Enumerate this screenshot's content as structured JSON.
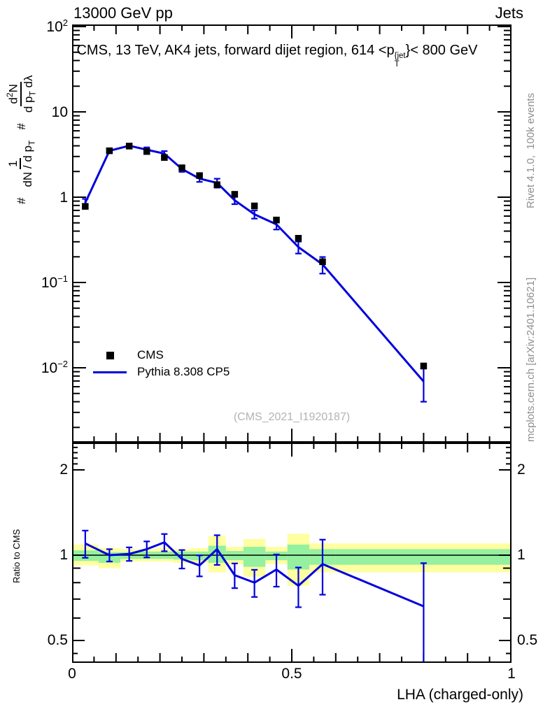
{
  "header": {
    "left": "13000 GeV pp",
    "right": "Jets"
  },
  "title": {
    "prefix": "CMS, 13 TeV, AK4 jets, forward dijet region, 614 <p",
    "sup": "{jet",
    "sub": "T",
    "suffix": "}< 800 GeV"
  },
  "ylabel": {
    "hash1": "#",
    "frac1": {
      "num": "1",
      "den_a": "dN / d p",
      "den_sub": "T"
    },
    "hash2": "#",
    "frac2": {
      "num_a": "d",
      "num_sup": "2",
      "num_b": "N",
      "den_a": "d p",
      "den_sub": "T",
      "den_b": " dλ"
    }
  },
  "right_labels": {
    "top": "Rivet 4.1.0,  100k events",
    "bottom": "mcplots.cern.ch [arXiv:2401.10621]"
  },
  "legend": {
    "items": [
      {
        "label": "CMS",
        "marker": "square"
      },
      {
        "label": "Pythia 8.308 CP5",
        "marker": "line"
      }
    ]
  },
  "watermark": "(CMS_2021_I1920187)",
  "ratio_ylabel": "Ratio to CMS",
  "xlabel": "LHA (charged-only)",
  "colors": {
    "mc_line": "#0000dd",
    "data_marker": "#000000",
    "band_yellow": "#feffa0",
    "band_green": "#95f0a0",
    "axis": "#000000",
    "gray_text": "#8f8f8f",
    "watermark": "#b3b3b3"
  },
  "axes": {
    "x_ticks": [
      {
        "label": "0",
        "value": 0
      },
      {
        "label": "0.5",
        "value": 0.5
      },
      {
        "label": "1",
        "value": 1
      }
    ],
    "main_y_ticks": [
      {
        "base": "10",
        "exp": "2",
        "value": 100
      },
      {
        "base": "10",
        "exp": "",
        "value": 10
      },
      {
        "base": "1",
        "exp": "",
        "value": 1
      },
      {
        "base": "10",
        "exp": "−1",
        "value": 0.1
      },
      {
        "base": "10",
        "exp": "−2",
        "value": 0.01
      }
    ],
    "ratio_y_ticks": [
      {
        "label": "2",
        "value": 2
      },
      {
        "label": "1",
        "value": 1
      },
      {
        "label": "0.5",
        "value": 0.5
      }
    ]
  },
  "chart_data": {
    "type": "line",
    "title": "CMS, 13 TeV, AK4 jets, forward dijet region, 614 < pT_jet < 800 GeV",
    "xlabel": "LHA (charged-only)",
    "ylabel": "# 1/(dN/dpT) # d2N/(dpT dlambda)",
    "xlim": [
      0,
      1
    ],
    "main_ylim": [
      0.00133,
      105
    ],
    "main_yscale": "log",
    "ratio_ylim": [
      0.417,
      2.49
    ],
    "ratio_yscale": "log",
    "x": [
      0.03,
      0.085,
      0.13,
      0.17,
      0.21,
      0.25,
      0.29,
      0.33,
      0.37,
      0.415,
      0.465,
      0.515,
      0.57,
      0.8
    ],
    "bin_edges": [
      0,
      0.06,
      0.11,
      0.15,
      0.19,
      0.23,
      0.27,
      0.31,
      0.35,
      0.39,
      0.44,
      0.49,
      0.54,
      0.6,
      1.0
    ],
    "series": [
      {
        "name": "CMS",
        "style": "black-squares",
        "values": [
          0.78,
          3.5,
          3.97,
          3.43,
          2.92,
          2.21,
          1.79,
          1.4,
          1.08,
          0.79,
          0.54,
          0.33,
          0.175,
          0.0105
        ]
      },
      {
        "name": "Pythia 8.308 CP5",
        "style": "blue-line",
        "values": [
          0.86,
          3.5,
          4.01,
          3.6,
          3.24,
          2.14,
          1.65,
          1.47,
          0.92,
          0.63,
          0.48,
          0.26,
          0.163,
          0.0069
        ],
        "rel_err": [
          0.11,
          0.05,
          0.055,
          0.065,
          0.07,
          0.075,
          0.085,
          0.12,
          0.1,
          0.11,
          0.13,
          0.16,
          0.22,
          0.42
        ]
      }
    ],
    "ratio": {
      "name": "Pythia 8.308 CP5 / CMS",
      "values": [
        1.1,
        1.0,
        1.01,
        1.05,
        1.11,
        0.97,
        0.92,
        1.05,
        0.85,
        0.8,
        0.89,
        0.78,
        0.93,
        0.66
      ],
      "rel_err": [
        0.11,
        0.05,
        0.055,
        0.065,
        0.07,
        0.075,
        0.085,
        0.12,
        0.1,
        0.11,
        0.13,
        0.16,
        0.22,
        0.42
      ],
      "bands": {
        "yellow_hi": [
          1.09,
          1.06,
          1.05,
          1.05,
          1.06,
          1.05,
          1.06,
          1.17,
          1.07,
          1.14,
          1.07,
          1.19,
          1.1,
          1.1
        ],
        "yellow_lo": [
          0.92,
          0.9,
          0.95,
          0.95,
          0.95,
          0.94,
          0.94,
          0.87,
          0.93,
          0.84,
          0.93,
          0.78,
          0.87,
          0.87
        ],
        "green_hi": [
          1.04,
          1.025,
          1.025,
          1.03,
          1.03,
          1.03,
          1.03,
          1.08,
          1.035,
          1.07,
          1.03,
          1.09,
          1.05,
          1.05
        ],
        "green_lo": [
          0.955,
          0.94,
          0.97,
          0.97,
          0.97,
          0.965,
          0.96,
          0.94,
          0.96,
          0.91,
          0.96,
          0.89,
          0.925,
          0.925
        ]
      }
    }
  }
}
